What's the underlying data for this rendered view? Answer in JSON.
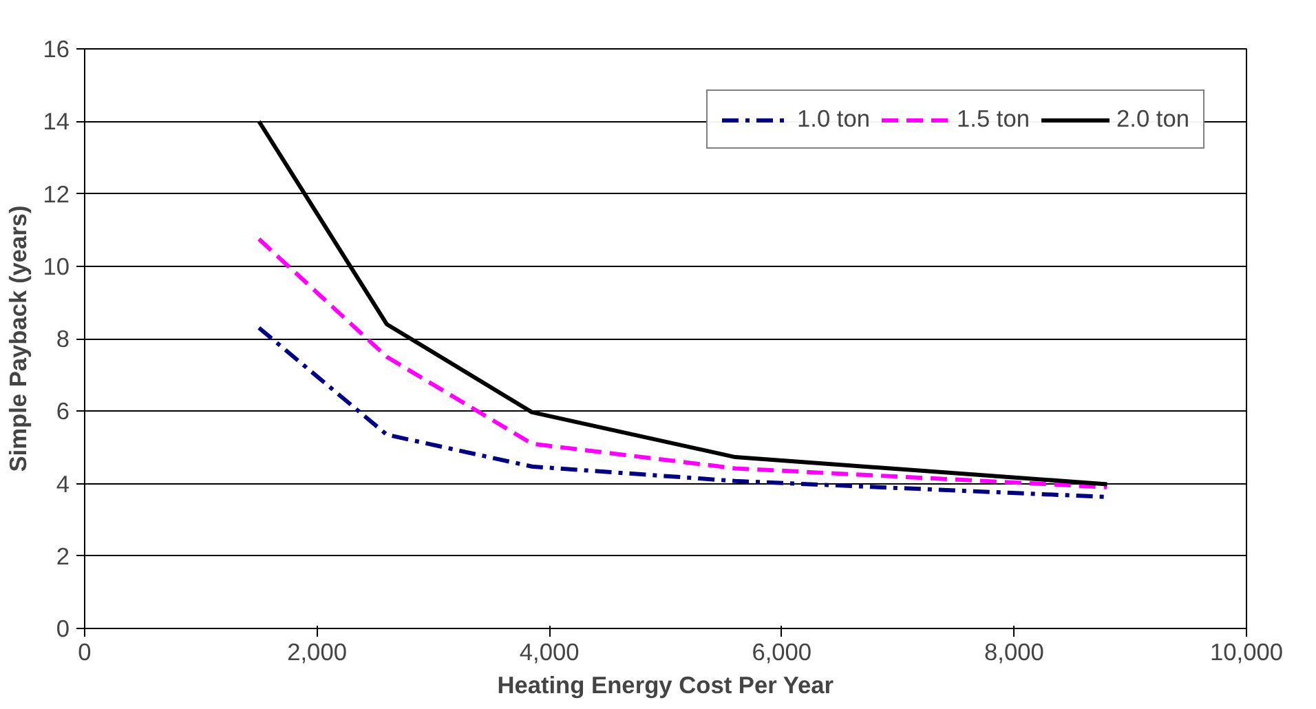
{
  "chart_data": {
    "type": "line",
    "xlabel": "Heating Energy Cost Per Year",
    "ylabel": "Simple Payback (years)",
    "x": [
      1500,
      2600,
      3850,
      5600,
      8800
    ],
    "series": [
      {
        "name": "1.0 ton",
        "color": "#000080",
        "line_style": "dashdot",
        "values": [
          8.3,
          5.35,
          4.47,
          4.07,
          3.63
        ]
      },
      {
        "name": "1.5 ton",
        "color": "#ff00ff",
        "line_style": "dashed",
        "values": [
          10.75,
          7.5,
          5.1,
          4.42,
          3.9
        ]
      },
      {
        "name": "2.0 ton",
        "color": "#000000",
        "line_style": "solid",
        "values": [
          14.0,
          8.4,
          5.97,
          4.73,
          3.98
        ]
      }
    ],
    "xlim": [
      0,
      10000
    ],
    "xticks": [
      0,
      {
        "value": 2000,
        "label": "2,000"
      },
      {
        "value": 4000,
        "label": "4,000"
      },
      {
        "value": 6000,
        "label": "6,000"
      },
      {
        "value": 8000,
        "label": "8,000"
      },
      {
        "value": 10000,
        "label": "10,000"
      }
    ],
    "ylim": [
      0,
      16
    ],
    "yticks": [
      0,
      2,
      4,
      6,
      8,
      10,
      12,
      14,
      16
    ],
    "grid": "y",
    "legend": "top right",
    "marker": "none"
  }
}
